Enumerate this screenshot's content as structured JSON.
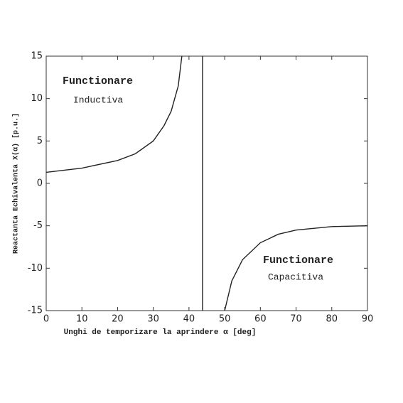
{
  "chart_data": {
    "type": "line",
    "x_label": "Unghi de temporizare la aprindere α [deg]",
    "y_label": "Reactanta Echivalenta X(α) [p.u.]",
    "annotations": [
      "Functionare",
      "Inductiva",
      "Functionare",
      "Capacitiva"
    ],
    "x": [
      0,
      10,
      20,
      25,
      30,
      33,
      35,
      37,
      38,
      40,
      43.8,
      43.8,
      45,
      50,
      52,
      55,
      60,
      65,
      70,
      80,
      90
    ],
    "series": [
      {
        "color": "#222222",
        "values": [
          1.3,
          1.8,
          2.7,
          3.5,
          5.0,
          6.8,
          8.5,
          11.5,
          15,
          null,
          15,
          -15,
          null,
          -15,
          -11.5,
          -9,
          -7,
          -6,
          -5.5,
          -5.1,
          -5
        ]
      }
    ],
    "xlim": [
      0,
      90
    ],
    "ylim": [
      -15,
      15
    ],
    "xticks": [
      0,
      10,
      20,
      30,
      40,
      50,
      60,
      70,
      80,
      90
    ],
    "yticks": [
      -15,
      -10,
      -5,
      0,
      5,
      10,
      15
    ],
    "grid": false
  }
}
